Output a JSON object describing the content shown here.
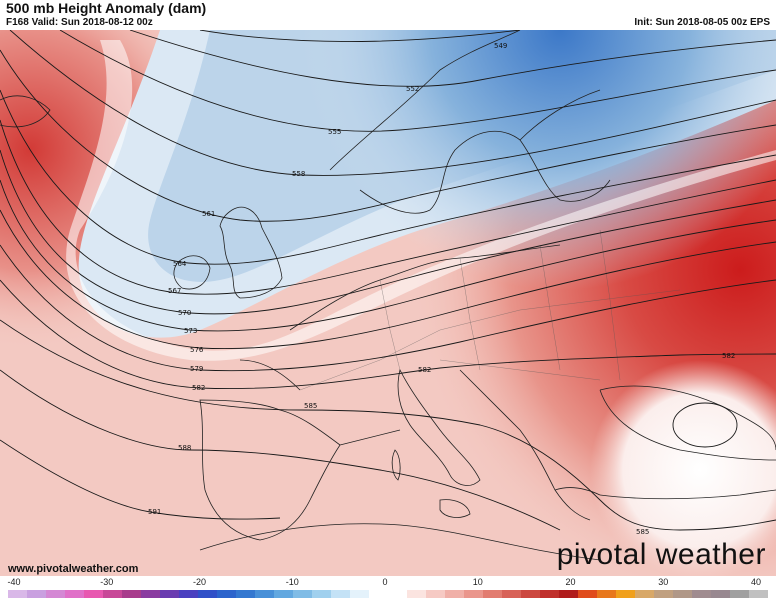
{
  "header": {
    "title": "500 mb Height Anomaly (dam)",
    "valid": "F168 Valid: Sun 2018-08-12 00z",
    "init": "Init: Sun 2018-08-05 00z EPS"
  },
  "footer": {
    "source": "www.pivotalweather.com",
    "brand": "pivotal weather"
  },
  "contour_labels": [
    "549",
    "552",
    "555",
    "558",
    "561",
    "564",
    "567",
    "570",
    "573",
    "576",
    "579",
    "582",
    "585",
    "588",
    "591",
    "582",
    "582",
    "585"
  ],
  "colorbar": {
    "ticks": [
      "-40",
      "-30",
      "-20",
      "-10",
      "0",
      "10",
      "20",
      "30",
      "40"
    ],
    "colors": [
      "#d9b8e8",
      "#c9a0e0",
      "#d488d4",
      "#e070c8",
      "#e858b0",
      "#c84898",
      "#a83c8c",
      "#8a3ca0",
      "#6a3cb0",
      "#4a40c0",
      "#3050c8",
      "#2c64cc",
      "#3478d0",
      "#4890d8",
      "#62a8e0",
      "#80bce6",
      "#a0d0ee",
      "#c4e2f6",
      "#e4f2fb",
      "#ffffff",
      "#ffffff",
      "#fbe4e0",
      "#f6cac4",
      "#f0b0a8",
      "#ea968c",
      "#e27c70",
      "#d86258",
      "#cc4840",
      "#c0302c",
      "#b01c1c",
      "#e04c1c",
      "#e8781c",
      "#f0a01c",
      "#d8a868",
      "#c0a080",
      "#b09888",
      "#a08c90",
      "#988890",
      "#a0a0a0",
      "#c0c0c0"
    ]
  }
}
